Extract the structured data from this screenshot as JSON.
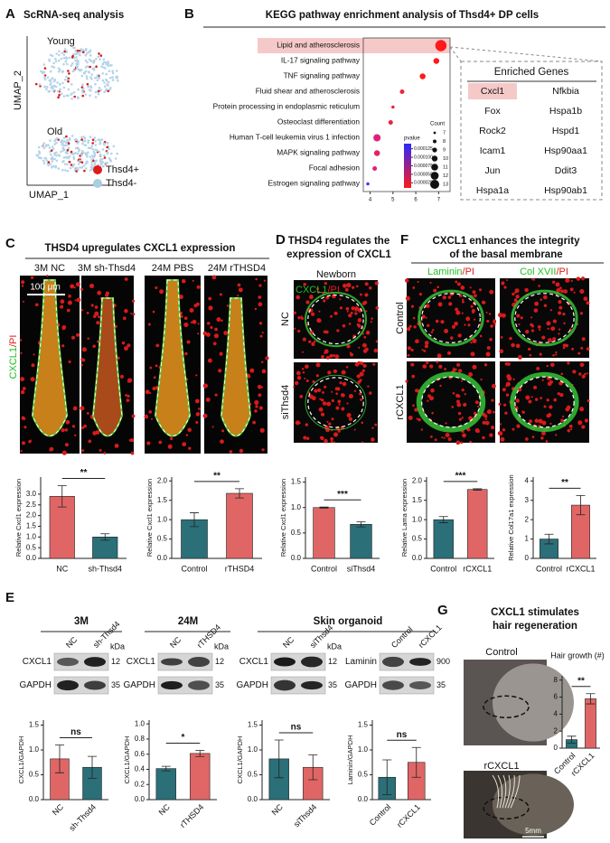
{
  "chart_data": [
    {
      "type": "scatter",
      "title": "KEGG pathway enrichment analysis of Thsd4+ DP cells",
      "categories": [
        "Lipid and atherosclerosis",
        "IL-17 signaling pathway",
        "TNF signaling pathway",
        "Fluid shear and atherosclerosis",
        "Protein processing in endoplasmic reticulum",
        "Osteoclast differentiation",
        "Human T-cell leukemia virus 1 infection",
        "MAPK signaling pathway",
        "Focal adhesion",
        "Estrogen signaling pathway"
      ],
      "x": [
        7.1,
        6.9,
        6.3,
        5.4,
        5.0,
        4.9,
        4.3,
        4.3,
        4.2,
        3.9
      ],
      "sizes": [
        13,
        9,
        9,
        8,
        7,
        8,
        10,
        9,
        8,
        7
      ],
      "colors": [
        "#ff1a1a",
        "#ff1a1a",
        "#ff1a1a",
        "#f5203a",
        "#f0203f",
        "#f0203f",
        "#e0207a",
        "#e82060",
        "#e0207a",
        "#3a3aff"
      ],
      "highlight": 0,
      "xlim": [
        3.7,
        7.5
      ],
      "xticks": [
        4,
        5,
        6,
        7
      ],
      "size_legend": {
        "title": "Count",
        "values": [
          7,
          8,
          9,
          10,
          11,
          12,
          13
        ]
      },
      "color_legend": {
        "title": "pvalue",
        "colormap": [
          "#2a2aff",
          "#ff1a1a"
        ],
        "lim": [
          1e-05,
          0.00014
        ],
        "ticks": [
          0.000125,
          {
            "value": 0.0001,
            "label": "0.000100"
          },
          7.5e-05,
          {
            "value": 5e-05,
            "label": "0.000050"
          },
          2.5e-05
        ]
      }
    },
    {
      "type": "bar",
      "ylabel": "Relative Cxcl1 expression",
      "categories": [
        "NC",
        "sh-Thsd4"
      ],
      "values": [
        2.9,
        1.0
      ],
      "errors": [
        0.5,
        0.15
      ],
      "colors": [
        "#e06666",
        "#2b6f78"
      ],
      "annotation": "**",
      "ylim": [
        0,
        3.8
      ],
      "yticks": [
        {
          "value": 0,
          "label": "0.0"
        },
        {
          "value": 0.5,
          "label": "0.5"
        },
        {
          "value": 1,
          "label": "1.0"
        },
        {
          "value": 1.5,
          "label": "1.5"
        },
        {
          "value": 2,
          "label": "2.0"
        },
        {
          "value": 2.5,
          "label": "2.5"
        },
        {
          "value": 3,
          "label": "3.0"
        }
      ]
    },
    {
      "type": "bar",
      "ylabel": "Relative Cxcl1 expression",
      "categories": [
        "Control",
        "rTHSD4"
      ],
      "values": [
        1.0,
        1.68
      ],
      "errors": [
        0.18,
        0.12
      ],
      "colors": [
        "#2b6f78",
        "#e06666"
      ],
      "annotation": "**",
      "ylim": [
        0,
        2.1
      ],
      "yticks": [
        {
          "value": 0,
          "label": "0.0"
        },
        {
          "value": 0.5,
          "label": "0.5"
        },
        {
          "value": 1,
          "label": "1.0"
        },
        {
          "value": 1.5,
          "label": "1.5"
        },
        {
          "value": 2,
          "label": "2.0"
        }
      ]
    },
    {
      "type": "bar",
      "ylabel": "Relative Cxcl1 expression",
      "categories": [
        "Control",
        "siThsd4"
      ],
      "values": [
        1.0,
        0.67
      ],
      "errors": [
        0.01,
        0.05
      ],
      "colors": [
        "#e06666",
        "#2b6f78"
      ],
      "annotation": "***",
      "ylim": [
        0,
        1.6
      ],
      "yticks": [
        {
          "value": 0,
          "label": "0.0"
        },
        {
          "value": 0.5,
          "label": "0.5"
        },
        {
          "value": 1,
          "label": "1.0"
        },
        {
          "value": 1.5,
          "label": "1.5"
        }
      ]
    },
    {
      "type": "bar",
      "ylabel": "Relative Lama expression",
      "categories": [
        "Control",
        "rCXCL1"
      ],
      "values": [
        1.0,
        1.78
      ],
      "errors": [
        0.08,
        0.02
      ],
      "colors": [
        "#2b6f78",
        "#e06666"
      ],
      "annotation": "***",
      "ylim": [
        0,
        2.1
      ],
      "yticks": [
        {
          "value": 0,
          "label": "0.0"
        },
        {
          "value": 0.5,
          "label": "0.5"
        },
        {
          "value": 1,
          "label": "1.0"
        },
        {
          "value": 1.5,
          "label": "1.5"
        },
        {
          "value": 2,
          "label": "2.0"
        }
      ]
    },
    {
      "type": "bar",
      "ylabel": "Relative Col17a1 expression",
      "categories": [
        "Control",
        "rCXCL1"
      ],
      "values": [
        1.0,
        2.75
      ],
      "errors": [
        0.25,
        0.5
      ],
      "colors": [
        "#2b6f78",
        "#e06666"
      ],
      "annotation": "**",
      "ylim": [
        0,
        4.2
      ],
      "yticks": [
        0,
        1,
        2,
        3,
        4
      ]
    },
    {
      "type": "bar",
      "ylabel": "CXCL1/GAPDH",
      "categories": [
        "NC",
        "sh-Thsd4"
      ],
      "values": [
        0.82,
        0.65
      ],
      "errors": [
        0.28,
        0.22
      ],
      "colors": [
        "#e06666",
        "#2b6f78"
      ],
      "annotation": "ns",
      "ylim": [
        0,
        1.6
      ],
      "yticks": [
        {
          "value": 0,
          "label": "0.0"
        },
        {
          "value": 0.5,
          "label": "0.5"
        },
        {
          "value": 1,
          "label": "1.0"
        },
        {
          "value": 1.5,
          "label": "1.5"
        }
      ]
    },
    {
      "type": "bar",
      "ylabel": "CXCL1/GAPDH",
      "categories": [
        "NC",
        "rTHSD4"
      ],
      "values": [
        0.41,
        0.61
      ],
      "errors": [
        0.03,
        0.04
      ],
      "colors": [
        "#2b6f78",
        "#e06666"
      ],
      "annotation": "*",
      "ylim": [
        0,
        1.05
      ],
      "yticks": [
        {
          "value": 0,
          "label": "0.0"
        },
        {
          "value": 0.2,
          "label": "0.2"
        },
        {
          "value": 0.4,
          "label": "0.4"
        },
        {
          "value": 0.6,
          "label": "0.6"
        },
        {
          "value": 0.8,
          "label": "0.8"
        },
        {
          "value": 1,
          "label": "1.0"
        }
      ]
    },
    {
      "type": "bar",
      "ylabel": "CXCL1/GAPDH",
      "categories": [
        "NC",
        "siThsd4"
      ],
      "values": [
        0.82,
        0.65
      ],
      "errors": [
        0.38,
        0.25
      ],
      "colors": [
        "#2b6f78",
        "#e06666"
      ],
      "annotation": "ns",
      "ylim": [
        0,
        1.6
      ],
      "yticks": [
        {
          "value": 0,
          "label": "0.0"
        },
        {
          "value": 0.5,
          "label": "0.5"
        },
        {
          "value": 1,
          "label": "1.0"
        },
        {
          "value": 1.5,
          "label": "1.5"
        }
      ]
    },
    {
      "type": "bar",
      "ylabel": "Laminin/GAPDH",
      "categories": [
        "Control",
        "rCXCL1"
      ],
      "values": [
        0.45,
        0.75
      ],
      "errors": [
        0.35,
        0.3
      ],
      "colors": [
        "#2b6f78",
        "#e06666"
      ],
      "annotation": "ns",
      "ylim": [
        0,
        1.6
      ],
      "yticks": [
        {
          "value": 0,
          "label": "0.0"
        },
        {
          "value": 0.5,
          "label": "0.5"
        },
        {
          "value": 1,
          "label": "1.0"
        },
        {
          "value": 1.5,
          "label": "1.5"
        }
      ]
    },
    {
      "type": "bar",
      "title": "Hair growth (#)",
      "categories": [
        "Control",
        "rCXCL1"
      ],
      "values": [
        1.0,
        5.8
      ],
      "errors": [
        0.4,
        0.6
      ],
      "colors": [
        "#2b6f78",
        "#e06666"
      ],
      "annotation": "**",
      "ylim": [
        0,
        8.5
      ],
      "yticks": [
        0,
        2,
        4,
        6,
        8
      ]
    }
  ],
  "panels": {
    "A": {
      "label": "A",
      "title": "ScRNA-seq analysis",
      "groups": [
        "Young",
        "Old"
      ],
      "x_axis": "UMAP_1",
      "y_axis": "UMAP_2",
      "legend": [
        "Thsd4+",
        "Thsd4-"
      ]
    },
    "B": {
      "label": "B",
      "genes_title": "Enriched Genes",
      "highlight": 0,
      "genes": [
        "Cxcl1",
        "Nfkbia",
        "Fox",
        "Hspa1b",
        "Rock2",
        "Hspd1",
        "Icam1",
        "Hsp90aa1",
        "Jun",
        "Ddit3",
        "Hspa1a",
        "Hsp90ab1"
      ]
    },
    "C": {
      "label": "C",
      "title": "THSD4 upregulates CXCL1 expression",
      "conditions": [
        "3M NC",
        "3M sh-Thsd4",
        "24M PBS",
        "24M rTHSD4"
      ],
      "stain": [
        "CXCL1",
        "/PI"
      ],
      "scale": "100 μm"
    },
    "D": {
      "label": "D",
      "title": [
        "THSD4 regulates the",
        "expression of CXCL1"
      ],
      "group": "Newborn",
      "rows": [
        "NC",
        "siThsd4"
      ],
      "stain": [
        "CXCL1",
        "/PI"
      ]
    },
    "F": {
      "label": "F",
      "title": [
        "CXCL1 enhances the integrity",
        "of the basal membrane"
      ],
      "columns": [
        [
          "Laminin",
          "/PI"
        ],
        [
          "Col XVII",
          "/PI"
        ]
      ],
      "rows": [
        "Control",
        "rCXCL1"
      ]
    },
    "E": {
      "label": "E",
      "groups": [
        "3M",
        "24M",
        "Skin organoid"
      ],
      "kda_unit": "kDa",
      "blots": [
        {
          "lanes": [
            "NC",
            "sh-Thsd4"
          ],
          "rows": [
            "CXCL1",
            "GAPDH"
          ],
          "kda": [
            12,
            35
          ]
        },
        {
          "lanes": [
            "NC",
            "rTHSD4"
          ],
          "rows": [
            "CXCL1",
            "GAPDH"
          ],
          "kda": [
            12,
            35
          ]
        },
        {
          "lanes": [
            "NC",
            "siThsd4"
          ],
          "rows": [
            "CXCL1",
            "GAPDH"
          ],
          "kda": [
            12,
            35
          ]
        },
        {
          "lanes": [
            "Control",
            "rCXCL1"
          ],
          "rows": [
            "Laminin",
            "GAPDH"
          ],
          "kda": [
            900,
            35
          ]
        }
      ]
    },
    "G": {
      "label": "G",
      "title": [
        "CXCL1 stimulates",
        "hair regeneration"
      ],
      "rows": [
        "Control",
        "rCXCL1"
      ],
      "scale": "5mm"
    }
  }
}
